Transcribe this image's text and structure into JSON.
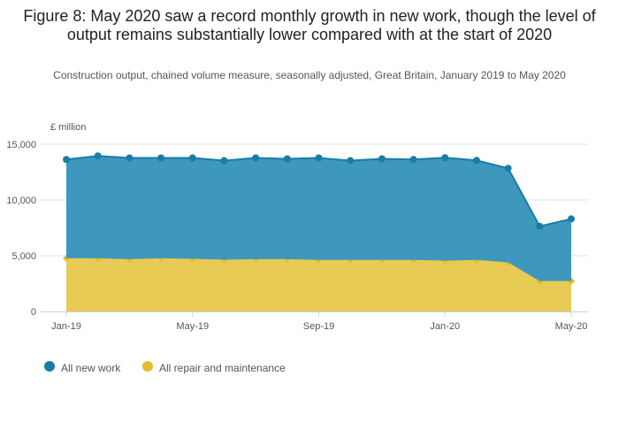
{
  "title": "Figure 8: May 2020 saw a record monthly growth in new work, though the level of output remains substantially lower compared with at the start of 2020",
  "subtitle": "Construction output, chained volume measure, seasonally adjusted, Great Britain, January 2019 to May 2020",
  "chart_data": {
    "type": "area",
    "stacked": true,
    "title": "Figure 8: May 2020 saw a record monthly growth in new work, though the level of output remains substantially lower compared with at the start of 2020",
    "ylabel": "£ million",
    "ylim": [
      0,
      15000
    ],
    "yticks": [
      0,
      5000,
      10000,
      15000
    ],
    "ytick_labels": [
      "0",
      "5,000",
      "10,000",
      "15,000"
    ],
    "x": [
      "Jan-19",
      "Feb-19",
      "Mar-19",
      "Apr-19",
      "May-19",
      "Jun-19",
      "Jul-19",
      "Aug-19",
      "Sep-19",
      "Oct-19",
      "Nov-19",
      "Dec-19",
      "Jan-20",
      "Feb-20",
      "Mar-20",
      "Apr-20",
      "May-20"
    ],
    "xtick_labels": [
      "Jan-19",
      "May-19",
      "Sep-19",
      "Jan-20",
      "May-20"
    ],
    "grid": true,
    "legend": "bottom-left",
    "series": [
      {
        "name": "All repair and maintenance",
        "color": "#e8c94c",
        "marker": "diamond",
        "values": [
          4770,
          4770,
          4690,
          4770,
          4720,
          4640,
          4690,
          4690,
          4620,
          4620,
          4620,
          4620,
          4560,
          4620,
          4400,
          2730,
          2730
        ]
      },
      {
        "name": "All new work",
        "color": "#1a7ca8",
        "marker": "circle",
        "values": [
          8860,
          9180,
          9080,
          9000,
          9050,
          8890,
          9080,
          9000,
          9150,
          8910,
          9070,
          9010,
          9230,
          8930,
          8440,
          4910,
          5570
        ]
      }
    ]
  }
}
